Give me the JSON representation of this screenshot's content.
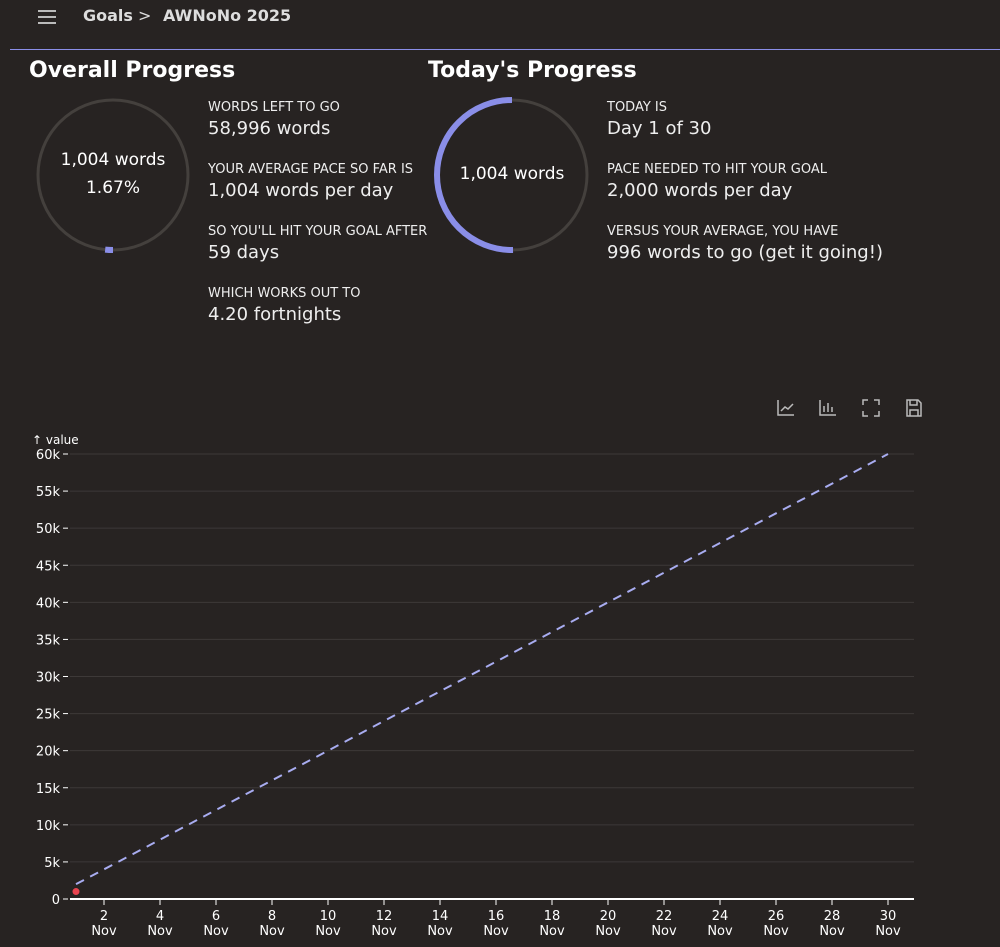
{
  "breadcrumb": {
    "root": "Goals",
    "separator": ">",
    "current": "AWNoNo 2025"
  },
  "overall": {
    "title": "Overall Progress",
    "words": "1,004 words",
    "percent": "1.67%",
    "fraction": 0.0167,
    "stats": [
      {
        "label": "WORDS LEFT TO GO",
        "value": "58,996 words"
      },
      {
        "label": "YOUR AVERAGE PACE SO FAR IS",
        "value": "1,004 words per day"
      },
      {
        "label": "SO YOU'LL HIT YOUR GOAL AFTER",
        "value": "59 days"
      },
      {
        "label": "WHICH WORKS OUT TO",
        "value": "4.20 fortnights"
      }
    ]
  },
  "today": {
    "title": "Today's Progress",
    "words": "1,004 words",
    "fraction": 0.502,
    "stats": [
      {
        "label": "TODAY IS",
        "value": "Day 1 of 30"
      },
      {
        "label": "PACE NEEDED TO HIT YOUR GOAL",
        "value": "2,000 words per day"
      },
      {
        "label": "VERSUS YOUR AVERAGE, YOU HAVE",
        "value": "996 words to go (get it going!)"
      }
    ]
  },
  "toolbar": [
    "line-chart-icon",
    "bar-chart-icon",
    "fullscreen-icon",
    "save-icon"
  ],
  "colors": {
    "accent": "#8a8ee8",
    "actual": "#e8434f",
    "track": "#44403d"
  },
  "chart_data": {
    "type": "line",
    "ylabel": "↑ value",
    "ylim": [
      0,
      60000
    ],
    "yticks": [
      {
        "v": 0,
        "label": "0"
      },
      {
        "v": 5000,
        "label": "5k"
      },
      {
        "v": 10000,
        "label": "10k"
      },
      {
        "v": 15000,
        "label": "15k"
      },
      {
        "v": 20000,
        "label": "20k"
      },
      {
        "v": 25000,
        "label": "25k"
      },
      {
        "v": 30000,
        "label": "30k"
      },
      {
        "v": 35000,
        "label": "35k"
      },
      {
        "v": 40000,
        "label": "40k"
      },
      {
        "v": 45000,
        "label": "45k"
      },
      {
        "v": 50000,
        "label": "50k"
      },
      {
        "v": 55000,
        "label": "55k"
      },
      {
        "v": 60000,
        "label": "60k"
      }
    ],
    "xticks": [
      2,
      4,
      6,
      8,
      10,
      12,
      14,
      16,
      18,
      20,
      22,
      24,
      26,
      28,
      30
    ],
    "xtick_month": "Nov",
    "xlim": [
      0.8,
      31
    ],
    "series": [
      {
        "style": "dashed",
        "x": [
          1,
          30
        ],
        "y": [
          2000,
          60000
        ]
      },
      {
        "style": "point",
        "x": [
          1
        ],
        "y": [
          1004
        ]
      }
    ]
  }
}
